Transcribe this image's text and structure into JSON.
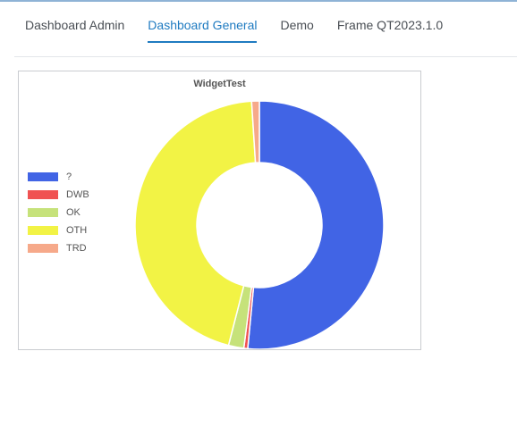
{
  "tabs": [
    {
      "label": "Dashboard Admin",
      "active": false
    },
    {
      "label": "Dashboard General",
      "active": true
    },
    {
      "label": "Demo",
      "active": false
    },
    {
      "label": "Frame QT2023.1.0",
      "active": false
    }
  ],
  "widget": {
    "title": "WidgetTest"
  },
  "chart_data": {
    "type": "pie",
    "title": "WidgetTest",
    "donut": true,
    "legend_position": "left",
    "categories": [
      "?",
      "DWB",
      "OK",
      "OTH",
      "TRD"
    ],
    "values": [
      51.5,
      0.5,
      2.0,
      45.0,
      1.0
    ],
    "colors": [
      "#4164e5",
      "#f05252",
      "#c6e27a",
      "#f2f345",
      "#f6a98a"
    ]
  }
}
